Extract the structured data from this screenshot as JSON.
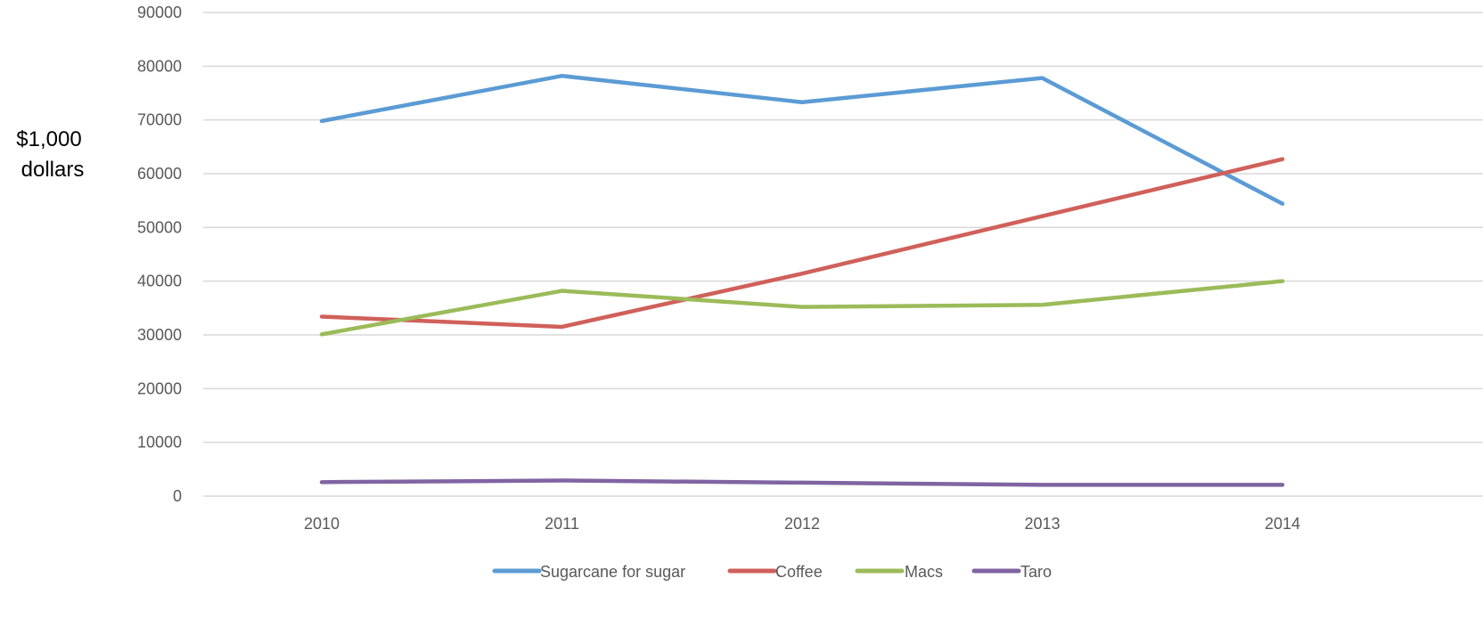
{
  "chart_data": {
    "type": "line",
    "title": "",
    "xlabel": "",
    "ylabel": [
      "$1,000",
      "dollars"
    ],
    "categories": [
      "2010",
      "2011",
      "2012",
      "2013",
      "2014"
    ],
    "ylim": [
      0,
      90000
    ],
    "yticks": [
      "0",
      "10000",
      "20000",
      "30000",
      "40000",
      "50000",
      "60000",
      "70000",
      "80000",
      "90000"
    ],
    "grid": true,
    "legend_position": "bottom",
    "series": [
      {
        "name": "Sugarcane for sugar",
        "color": "#5b9bd5",
        "values": [
          69800,
          78200,
          73300,
          77800,
          54400
        ]
      },
      {
        "name": "Coffee",
        "color": "#d0605a",
        "values": [
          33400,
          31500,
          41400,
          52100,
          62700
        ]
      },
      {
        "name": "Macs",
        "color": "#9bbb59",
        "values": [
          30100,
          38200,
          35200,
          35600,
          40000
        ]
      },
      {
        "name": "Taro",
        "color": "#8064a2",
        "values": [
          2600,
          2900,
          2500,
          2100,
          2100
        ]
      }
    ]
  }
}
